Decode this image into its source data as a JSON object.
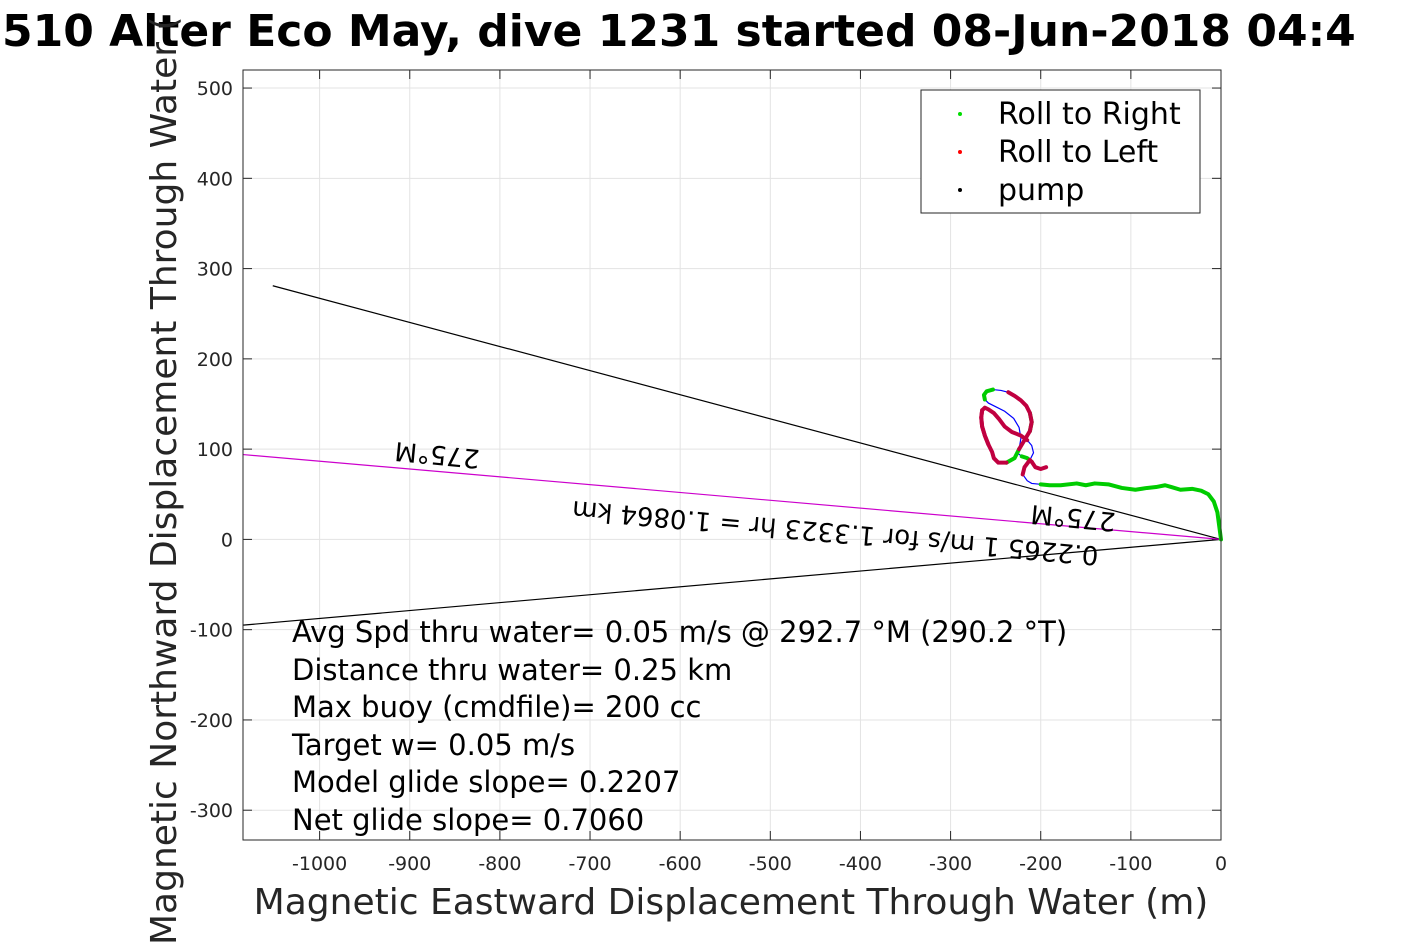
{
  "chart_data": {
    "type": "line",
    "title": "510 Alter Eco May, dive 1231 started 08-Jun-2018 04:4",
    "xlabel": "Magnetic Eastward Displacement Through Water (m)",
    "ylabel": "Magnetic Northward Displacement Through Water (",
    "xlim": [
      -1085,
      0
    ],
    "ylim": [
      -333,
      520
    ],
    "grid": true,
    "x_ticks": [
      -1000,
      -900,
      -800,
      -700,
      -600,
      -500,
      -400,
      -300,
      -200,
      -100,
      0
    ],
    "y_ticks": [
      -300,
      -200,
      -100,
      0,
      100,
      200,
      300,
      400,
      500
    ],
    "x_tick_labels": [
      "-1000",
      "-900",
      "-800",
      "-700",
      "-600",
      "-500",
      "-400",
      "-300",
      "-200",
      "-100",
      "0"
    ],
    "y_tick_labels": [
      "-300",
      "-200",
      "-100",
      "0",
      "100",
      "200",
      "300",
      "400",
      "500"
    ],
    "legend": {
      "placement": "top-right",
      "entries": [
        {
          "label": "Roll to Right",
          "color": "#00dd00"
        },
        {
          "label": "Roll to Left",
          "color": "#ff0000"
        },
        {
          "label": "pump",
          "color": "#000000"
        }
      ]
    },
    "lines": [
      {
        "role": "heading-wedge",
        "color": "#000000",
        "x": [
          0,
          -1052
        ],
        "y": [
          0,
          281
        ]
      },
      {
        "role": "heading-wedge",
        "color": "#000000",
        "x": [
          0,
          -1085
        ],
        "y": [
          0,
          -95
        ]
      },
      {
        "role": "current",
        "color": "#cc00cc",
        "x": [
          0,
          -1085
        ],
        "y": [
          0,
          94
        ]
      }
    ],
    "track": {
      "color": "#0000ff",
      "x": [
        0,
        -2,
        -4,
        -8,
        -14,
        -22,
        -32,
        -45,
        -55,
        -62,
        -72,
        -82,
        -95,
        -110,
        -125,
        -140,
        -150,
        -160,
        -178,
        -190,
        -200,
        -210,
        -215,
        -220,
        -218,
        -212,
        -208,
        -210,
        -215,
        -222,
        -232,
        -240,
        -246,
        -252,
        -258,
        -262,
        -265,
        -266,
        -265,
        -262,
        -258,
        -254,
        -252,
        -247,
        -238,
        -229,
        -224,
        -222,
        -224,
        -230,
        -240,
        -250,
        -258,
        -262,
        -263,
        -260,
        -253,
        -244,
        -236,
        -229,
        -222,
        -216,
        -212,
        -210,
        -212,
        -218,
        -224,
        -225,
        -221,
        -215,
        -210,
        -206,
        -200,
        -194
      ],
      "y": [
        0,
        15,
        30,
        42,
        50,
        54,
        56,
        55,
        58,
        60,
        58,
        57,
        55,
        57,
        61,
        62,
        60,
        62,
        60,
        60,
        61,
        62,
        65,
        72,
        80,
        88,
        96,
        104,
        110,
        115,
        119,
        125,
        133,
        140,
        144,
        146,
        143,
        135,
        125,
        115,
        105,
        97,
        90,
        85,
        85,
        90,
        100,
        112,
        124,
        134,
        142,
        147,
        151,
        155,
        160,
        164,
        166,
        165,
        163,
        159,
        154,
        148,
        140,
        130,
        120,
        110,
        100,
        95,
        92,
        90,
        86,
        80,
        78,
        80
      ]
    },
    "roll_right_segments": [
      [
        0,
        20
      ],
      [
        44,
        46
      ],
      [
        53,
        56
      ],
      [
        62,
        64
      ],
      [
        68,
        70
      ],
      [
        88,
        92
      ]
    ],
    "roll_left_segments": [
      [
        23,
        25
      ],
      [
        28,
        40
      ],
      [
        58,
        66
      ],
      [
        70,
        73
      ],
      [
        36,
        44
      ]
    ],
    "annotations": [
      "275°M",
      "275°M",
      "0.2265 1 m/s for 1.3323 hr = 1.0864 km"
    ],
    "notes": [
      "Avg Spd thru water=  0.05 m/s @ 292.7 °M (290.2 °T)",
      "Distance thru water=  0.25 km",
      "Max buoy (cmdfile)= 200 cc",
      "Target w= 0.05 m/s",
      "Model glide slope= 0.2207",
      "Net glide slope= 0.7060"
    ]
  }
}
